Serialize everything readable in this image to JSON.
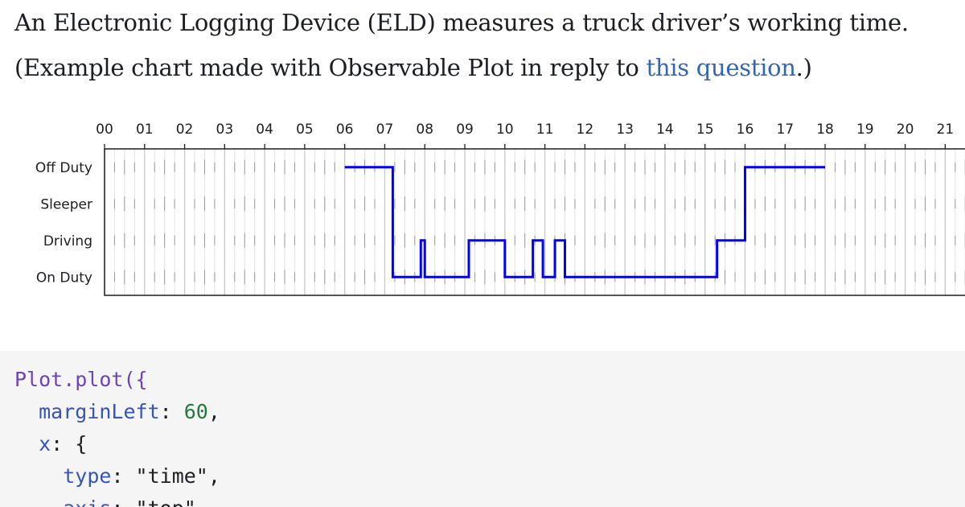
{
  "intro": {
    "line1": "An Electronic Logging Device (ELD) measures a truck driver’s working time.",
    "line2_before": "(Example chart made with Observable Plot in reply to ",
    "link_text": "this question",
    "line2_after": ".)"
  },
  "chart_data": {
    "type": "line",
    "curve": "step",
    "x_axis": {
      "position": "top",
      "unit": "hour",
      "ticks": [
        "00",
        "01",
        "02",
        "03",
        "04",
        "05",
        "06",
        "07",
        "08",
        "09",
        "10",
        "11",
        "12",
        "13",
        "14",
        "15",
        "16",
        "17",
        "18",
        "19",
        "20",
        "21"
      ],
      "range": [
        0,
        21.9
      ]
    },
    "y_axis": {
      "categories": [
        "Off Duty",
        "Sleeper",
        "Driving",
        "On Duty"
      ]
    },
    "grid": "vertical lines every 15 minutes, bold at each hour",
    "series": [
      {
        "color": "#0000ff",
        "points": [
          {
            "x": 6.0,
            "y": "Off Duty"
          },
          {
            "x": 7.2,
            "y": "On Duty"
          },
          {
            "x": 7.9,
            "y": "Driving"
          },
          {
            "x": 8.0,
            "y": "On Duty"
          },
          {
            "x": 9.1,
            "y": "Driving"
          },
          {
            "x": 10.0,
            "y": "On Duty"
          },
          {
            "x": 10.7,
            "y": "Driving"
          },
          {
            "x": 10.95,
            "y": "On Duty"
          },
          {
            "x": 11.25,
            "y": "Driving"
          },
          {
            "x": 11.5,
            "y": "On Duty"
          },
          {
            "x": 15.3,
            "y": "Driving"
          },
          {
            "x": 16.0,
            "y": "Off Duty"
          },
          {
            "x": 18.0,
            "y": "Off Duty"
          }
        ]
      }
    ]
  },
  "code": {
    "line1_fn": "Plot.plot({",
    "line2_key": "marginLeft",
    "line2_val": "60",
    "line3_key": "x",
    "line4_key": "type",
    "line4_val": "\"time\"",
    "line5_key": "axis",
    "line5_val": "\"top\""
  }
}
